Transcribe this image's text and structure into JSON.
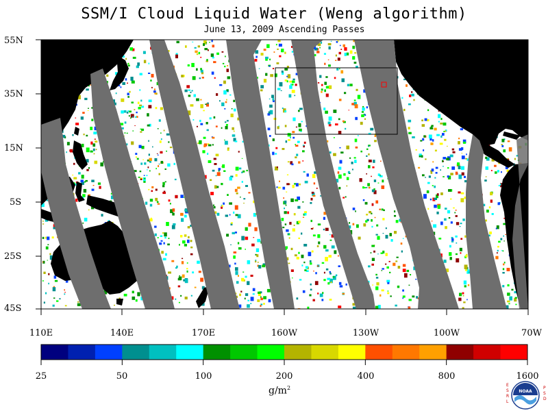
{
  "title": "SSM/I Cloud Liquid Water (Weng algorithm)",
  "subtitle": "June 13, 2009  Ascending Passes",
  "map": {
    "latitude_labels": [
      "55N",
      "35N",
      "15N",
      "5S",
      "25S",
      "45S"
    ],
    "longitude_labels": [
      "110E",
      "140E",
      "170E",
      "160W",
      "130W",
      "100W",
      "70W"
    ],
    "colors": {
      "ocean": "#ffffff",
      "land": "#000000",
      "no_data_gap": "#6e6e6e",
      "box_outline": "#000000",
      "marker": "#ff0000"
    }
  },
  "colorbar": {
    "labels": [
      "25",
      "50",
      "100",
      "200",
      "400",
      "800",
      "1600"
    ],
    "unit": "g/m",
    "unit_sup": "2",
    "colors": [
      "#00007f",
      "#0020b0",
      "#0040ff",
      "#008f8f",
      "#00c0c0",
      "#00ffff",
      "#009000",
      "#00c800",
      "#00ff00",
      "#b4b400",
      "#d8d800",
      "#ffff00",
      "#ff5000",
      "#ff7800",
      "#ffa000",
      "#8f0000",
      "#d00000",
      "#ff0000"
    ]
  },
  "logo": {
    "left_letters": [
      "E",
      "S",
      "R",
      "L"
    ],
    "right_letters": [
      "P",
      "S",
      "D"
    ],
    "center_text": "NOAA"
  }
}
